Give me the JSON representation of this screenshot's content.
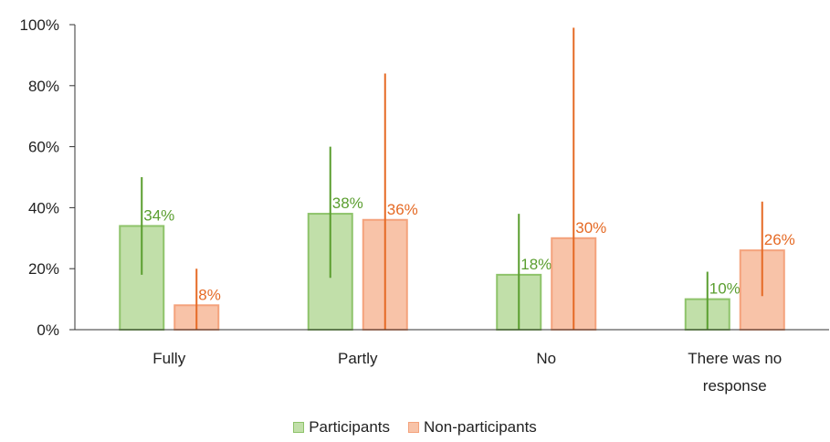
{
  "chart_data": {
    "type": "bar",
    "categories": [
      "Fully",
      "Partly",
      "No",
      "There was no response"
    ],
    "category_lines": [
      [
        "Fully"
      ],
      [
        "Partly"
      ],
      [
        "No"
      ],
      [
        "There was no",
        "response"
      ]
    ],
    "ylim": [
      0,
      100
    ],
    "yticks": [
      0,
      20,
      40,
      60,
      80,
      100
    ],
    "ytick_labels": [
      "0%",
      "20%",
      "40%",
      "60%",
      "80%",
      "100%"
    ],
    "grid": false,
    "legend_position": "bottom",
    "series": [
      {
        "name": "Participants",
        "values": [
          34,
          38,
          18,
          10
        ],
        "labels": [
          "34%",
          "38%",
          "18%",
          "10%"
        ],
        "error_low": [
          18,
          17,
          0,
          0
        ],
        "error_high": [
          50,
          60,
          38,
          19
        ],
        "fill": "#c1dfa9",
        "edge": "#8ec36a",
        "line": "#5a9e2f",
        "label_color": "#5a9e2f"
      },
      {
        "name": "Non-participants",
        "values": [
          8,
          36,
          30,
          26
        ],
        "labels": [
          "8%",
          "36%",
          "30%",
          "26%"
        ],
        "error_low": [
          0,
          0,
          0,
          11
        ],
        "error_high": [
          20,
          84,
          99,
          42
        ],
        "fill": "#f8c3a8",
        "edge": "#f4a27c",
        "line": "#e56a25",
        "label_color": "#e56a25"
      }
    ]
  },
  "legend": {
    "items": [
      {
        "label": "Participants"
      },
      {
        "label": "Non-participants"
      }
    ]
  }
}
